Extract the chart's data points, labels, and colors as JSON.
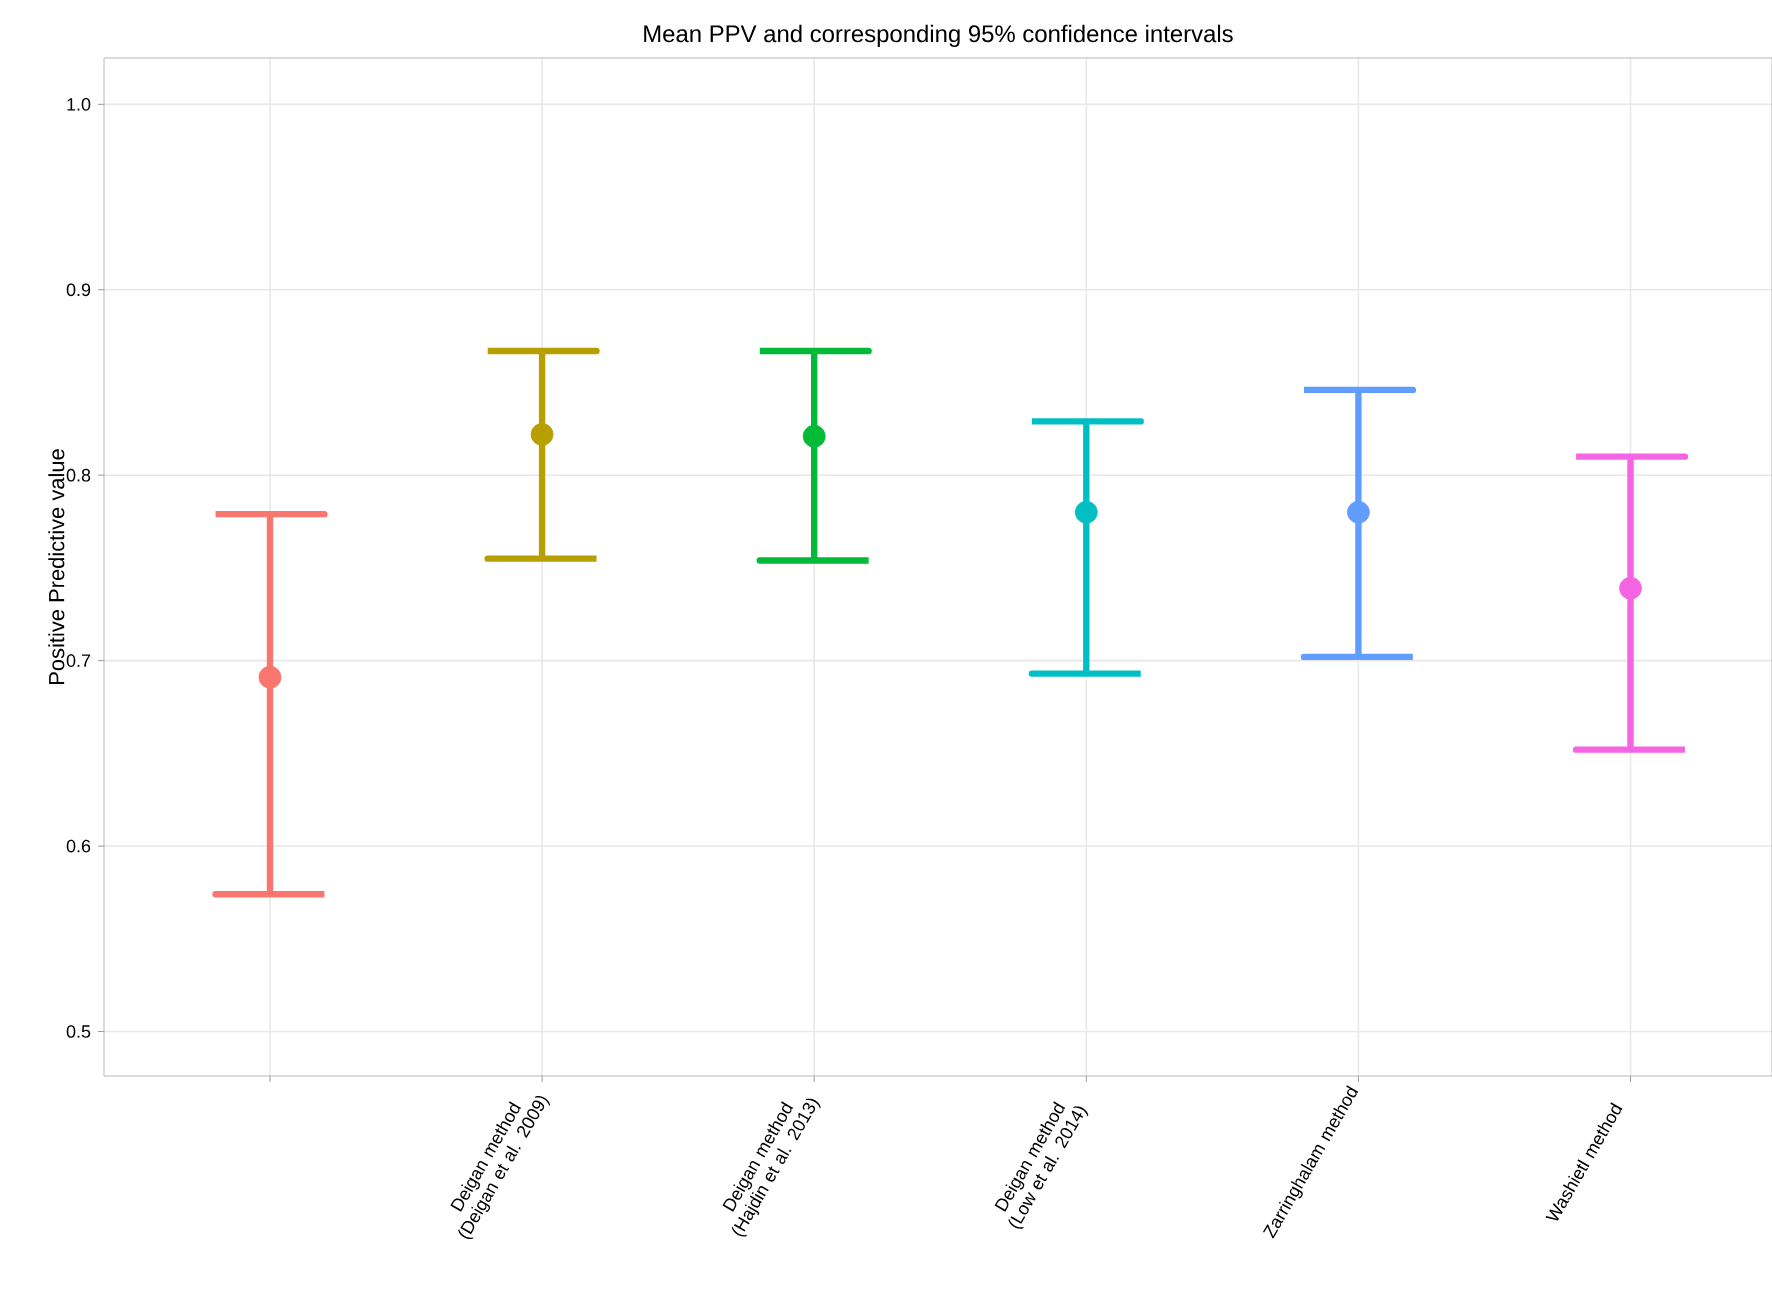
{
  "chart_data": {
    "type": "scatter",
    "title": "Mean PPV and corresponding 95% confidence intervals",
    "ylabel": "Positive Predictive value",
    "categories": [
      null,
      "Deigan method (Deigan et al. 2009)",
      "Deigan method (Hajdin et al. 2013)",
      "Deigan method (Low et al. 2014)",
      "Zarringhalam method",
      "Washietl method"
    ],
    "values": [
      0.691,
      0.822,
      0.821,
      0.78,
      0.78,
      0.739
    ],
    "errors": [
      [
        0.574,
        0.779
      ],
      [
        0.755,
        0.867
      ],
      [
        0.754,
        0.867
      ],
      [
        0.693,
        0.829
      ],
      [
        0.702,
        0.846
      ],
      [
        0.652,
        0.81
      ]
    ],
    "colors": [
      "#f8766d",
      "#b79f00",
      "#00ba38",
      "#00bfc4",
      "#619cff",
      "#f564e3"
    ],
    "ylim": [
      0.476,
      1.025
    ],
    "yticks": [
      0.5,
      0.6,
      0.7,
      0.8,
      0.9,
      {
        "value": 1.0,
        "label": "1.0"
      }
    ],
    "grid": true
  }
}
